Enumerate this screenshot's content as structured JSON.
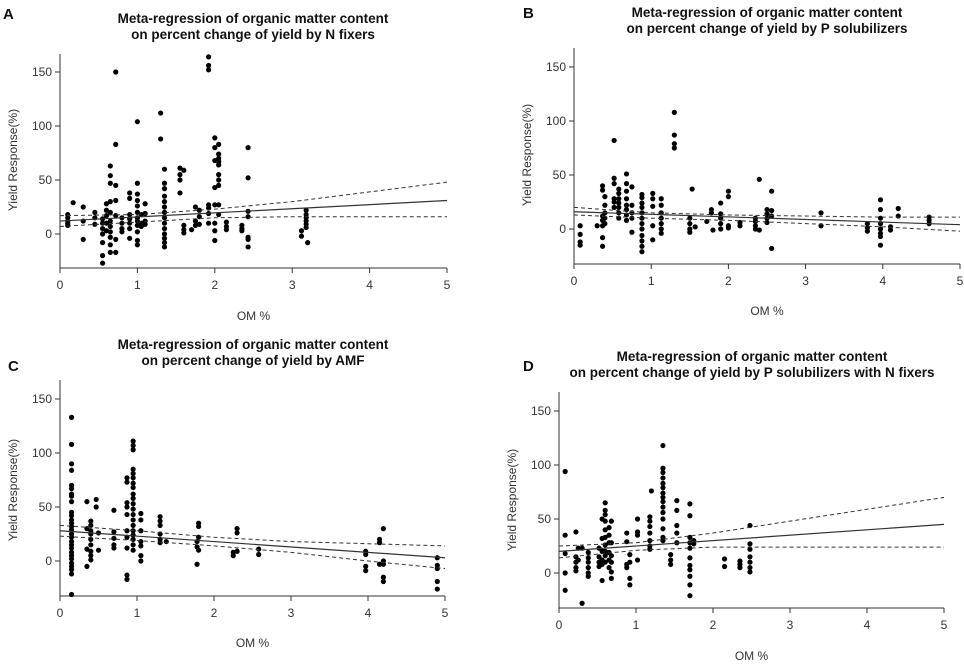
{
  "chart_data": [
    {
      "type": "scatter",
      "panel": "A",
      "title": [
        "Meta-regression of organic matter content",
        "on percent change of yield by N fixers"
      ],
      "xlabel": "OM %",
      "ylabel": "Yield Response(%)",
      "xlim": [
        0,
        5
      ],
      "ylim": [
        -31,
        168
      ],
      "xticks": [
        0,
        1,
        2,
        3,
        4,
        5
      ],
      "yticks": [
        0,
        50,
        100,
        150
      ],
      "fit": {
        "x": [
          0,
          5
        ],
        "y": [
          12,
          31
        ]
      },
      "ci_upper": {
        "x": [
          0,
          1,
          2,
          3,
          4,
          5
        ],
        "y": [
          17,
          18,
          23,
          30,
          39,
          48
        ]
      },
      "ci_lower": {
        "x": [
          0,
          1,
          2,
          3,
          4,
          5
        ],
        "y": [
          7,
          11,
          15,
          16,
          16,
          16
        ]
      },
      "points": {
        "0.1": [
          18,
          15,
          12,
          10,
          8
        ],
        "0.17": [
          29
        ],
        "0.3": [
          25,
          12,
          -5
        ],
        "0.45": [
          20,
          15,
          9
        ],
        "0.55": [
          14,
          10,
          5,
          0,
          -8,
          -20,
          -27
        ],
        "0.6": [
          28,
          22,
          17,
          10,
          3
        ],
        "0.65": [
          63,
          54,
          47,
          30,
          20,
          12,
          7,
          2,
          -3,
          -10,
          -17
        ],
        "0.72": [
          150,
          83,
          45,
          31,
          17,
          -5,
          -17
        ],
        "0.8": [
          15,
          10,
          5,
          2
        ],
        "0.9": [
          38,
          33,
          18,
          14,
          10,
          5,
          -4
        ],
        "1.0": [
          104,
          47,
          37,
          31,
          26,
          20,
          15,
          12,
          8,
          2,
          -6,
          -10
        ],
        "1.05": [
          18,
          10,
          7
        ],
        "1.1": [
          28,
          19,
          12,
          9
        ],
        "1.3": [
          112,
          88
        ],
        "1.35": [
          60,
          47,
          42,
          35,
          30,
          25,
          20,
          15,
          10,
          5,
          0,
          -4,
          -8,
          -12
        ],
        "1.55": [
          61,
          55,
          50,
          38
        ],
        "1.6": [
          59,
          8,
          4,
          1
        ],
        "1.7": [
          4
        ],
        "1.75": [
          25,
          12,
          8
        ],
        "1.8": [
          22,
          16,
          9
        ],
        "1.92": [
          164,
          156,
          152,
          27,
          24,
          19,
          10
        ],
        "2.0": [
          89,
          80,
          68,
          43,
          27,
          10,
          3,
          -6
        ],
        "2.05": [
          83,
          74,
          70,
          67,
          64,
          55,
          50,
          45,
          27,
          18
        ],
        "2.15": [
          11,
          7,
          4
        ],
        "2.35": [
          8,
          5,
          3
        ],
        "2.43": [
          80,
          52,
          21,
          16,
          -3,
          -5,
          -12
        ],
        "3.12": [
          3,
          -2
        ],
        "3.18": [
          22,
          18,
          15,
          12,
          9,
          6
        ],
        "3.2": [
          -8
        ]
      }
    },
    {
      "type": "scatter",
      "panel": "B",
      "title": [
        "Meta-regression of organic matter content",
        "on percent change of yield by P solubilizers"
      ],
      "xlabel": "OM %",
      "ylabel": "Yield Response(%)",
      "xlim": [
        0,
        5
      ],
      "ylim": [
        -31,
        168
      ],
      "xticks": [
        0,
        1,
        2,
        3,
        4,
        5
      ],
      "yticks": [
        0,
        50,
        100,
        150
      ],
      "fit": {
        "x": [
          0,
          5
        ],
        "y": [
          16,
          4
        ]
      },
      "ci_upper": {
        "x": [
          0,
          1,
          2,
          3,
          4,
          5
        ],
        "y": [
          20,
          15,
          13,
          12,
          11,
          11
        ]
      },
      "ci_lower": {
        "x": [
          0,
          1,
          2,
          3,
          4,
          5
        ],
        "y": [
          13,
          10,
          8,
          5,
          2,
          -2
        ]
      },
      "points": {
        "0.08": [
          3,
          -5,
          -12,
          -15
        ],
        "0.3": [
          3
        ],
        "0.37": [
          40,
          36,
          12,
          8,
          3,
          -8,
          -16
        ],
        "0.4": [
          30,
          22,
          15,
          10,
          5
        ],
        "0.52": [
          82,
          47,
          42,
          28,
          25,
          20
        ],
        "0.58": [
          37,
          33,
          28,
          24,
          20,
          15,
          10
        ],
        "0.68": [
          51,
          42,
          35,
          28,
          22,
          18,
          13,
          8
        ],
        "0.75": [
          39,
          22,
          15,
          10,
          -3
        ],
        "0.88": [
          32,
          29,
          24,
          20,
          15,
          10,
          5,
          0,
          -6,
          -11,
          -16,
          -21
        ],
        "1.02": [
          33,
          28,
          21,
          3,
          -10
        ],
        "1.13": [
          28,
          22,
          15,
          10,
          5,
          0,
          -4
        ],
        "1.3": [
          108,
          87,
          79,
          75
        ],
        "1.5": [
          10,
          5,
          0,
          -3
        ],
        "1.53": [
          37
        ],
        "1.57": [
          2
        ],
        "1.72": [
          7
        ],
        "1.78": [
          18,
          15
        ],
        "1.8": [
          -1
        ],
        "1.9": [
          24,
          14,
          10,
          5,
          0
        ],
        "2.0": [
          35,
          30,
          3,
          1
        ],
        "2.15": [
          6,
          3
        ],
        "2.35": [
          10,
          7,
          3,
          0
        ],
        "2.4": [
          46,
          -1
        ],
        "2.5": [
          18,
          14,
          10,
          6
        ],
        "2.56": [
          35,
          17,
          12,
          -18
        ],
        "3.2": [
          15,
          3
        ],
        "3.8": [
          5,
          1,
          -2
        ],
        "3.97": [
          27,
          18,
          10,
          5,
          0,
          -4,
          -7,
          -15
        ],
        "4.1": [
          2,
          -1
        ],
        "4.2": [
          19,
          12
        ],
        "4.6": [
          11,
          8,
          5
        ]
      }
    },
    {
      "type": "scatter",
      "panel": "C",
      "title": [
        "Meta-regression of organic matter content",
        "on percent change of yield by AMF"
      ],
      "xlabel": "OM %",
      "ylabel": "Yield Response(%)",
      "xlim": [
        0,
        5
      ],
      "ylim": [
        -31,
        168
      ],
      "xticks": [
        0,
        1,
        2,
        3,
        4,
        5
      ],
      "yticks": [
        0,
        50,
        100,
        150
      ],
      "fit": {
        "x": [
          0,
          5
        ],
        "y": [
          28,
          3
        ]
      },
      "ci_upper": {
        "x": [
          0,
          1,
          2,
          3,
          4,
          5
        ],
        "y": [
          33,
          28,
          22,
          18,
          16,
          14
        ]
      },
      "ci_lower": {
        "x": [
          0,
          1,
          2,
          3,
          4,
          5
        ],
        "y": [
          23,
          19,
          14,
          8,
          0,
          -7
        ]
      },
      "points": {
        "0.15": [
          133,
          108,
          90,
          84,
          70,
          67,
          62,
          60,
          55,
          45,
          42,
          38,
          35,
          32,
          29,
          25,
          22,
          18,
          15,
          12,
          8,
          5,
          2,
          -2,
          -5,
          -8,
          -12,
          -31
        ],
        "0.35": [
          55,
          30,
          11,
          -5
        ],
        "0.4": [
          37,
          33,
          28,
          25,
          20,
          15,
          9,
          5,
          1
        ],
        "0.47": [
          57,
          50
        ],
        "0.5": [
          26,
          10
        ],
        "0.7": [
          47,
          27,
          21,
          15,
          12
        ],
        "0.87": [
          77,
          73,
          54,
          50,
          43,
          28,
          22,
          12,
          -13,
          -17
        ],
        "0.95": [
          111,
          107,
          103,
          85,
          81,
          77,
          72,
          68,
          62,
          58,
          53,
          48,
          43,
          38,
          33,
          28,
          24,
          20,
          15,
          10
        ],
        "1.05": [
          44,
          38,
          28,
          18,
          14,
          5,
          0
        ],
        "1.3": [
          41,
          37,
          33,
          25,
          20,
          17
        ],
        "1.38": [
          18
        ],
        "1.78": [
          18,
          13,
          -3
        ],
        "1.8": [
          35,
          32,
          22,
          10
        ],
        "2.25": [
          8,
          5
        ],
        "2.3": [
          30,
          26,
          9
        ],
        "2.58": [
          11,
          6
        ],
        "3.97": [
          9,
          6,
          -5,
          -9
        ],
        "4.15": [
          20,
          17,
          -3
        ],
        "4.2": [
          30,
          0,
          -3,
          -15,
          -19
        ],
        "4.9": [
          3,
          -4,
          -7,
          -19,
          -26
        ]
      }
    },
    {
      "type": "scatter",
      "panel": "D",
      "title": [
        "Meta-regression of organic matter content",
        "on percent change of yield by P solubilizers with N fixers"
      ],
      "xlabel": "OM %",
      "ylabel": "Yield Response(%)",
      "xlim": [
        0,
        5
      ],
      "ylim": [
        -31,
        168
      ],
      "xticks": [
        0,
        1,
        2,
        3,
        4,
        5
      ],
      "yticks": [
        0,
        50,
        100,
        150
      ],
      "fit": {
        "x": [
          0,
          5
        ],
        "y": [
          20,
          45
        ]
      },
      "ci_upper": {
        "x": [
          0,
          1,
          2,
          3,
          4,
          5
        ],
        "y": [
          25,
          28,
          37,
          48,
          59,
          70
        ]
      },
      "ci_lower": {
        "x": [
          0,
          1,
          2,
          3,
          4,
          5
        ],
        "y": [
          14,
          21,
          24,
          24,
          24,
          24
        ]
      },
      "points": {
        "0.08": [
          94,
          35,
          18,
          0,
          -16
        ],
        "0.22": [
          38,
          15,
          10,
          5,
          2
        ],
        "0.25": [
          23,
          12
        ],
        "0.3": [
          23,
          -28
        ],
        "0.38": [
          19,
          14,
          10,
          5,
          0,
          -3
        ],
        "0.52": [
          23,
          15,
          10,
          6
        ],
        "0.56": [
          50,
          32,
          20,
          12,
          8,
          -7
        ],
        "0.6": [
          65,
          58,
          54,
          48,
          40,
          33,
          26,
          20,
          16,
          10
        ],
        "0.65": [
          42,
          35,
          28,
          19,
          12,
          5
        ],
        "0.68": [
          48,
          28,
          16,
          10,
          1,
          -5
        ],
        "0.88": [
          37,
          29,
          8,
          5
        ],
        "0.92": [
          17,
          10,
          -5,
          -11
        ],
        "1.02": [
          50,
          38,
          35,
          12
        ],
        "1.18": [
          52,
          48,
          43,
          37,
          30,
          25,
          22
        ],
        "1.2": [
          76
        ],
        "1.35": [
          118,
          97,
          93,
          88,
          83,
          79,
          74,
          70,
          66,
          61,
          56,
          50,
          41,
          33,
          30
        ],
        "1.45": [
          17,
          12,
          8
        ],
        "1.53": [
          67,
          58,
          44,
          37,
          28
        ],
        "1.7": [
          64,
          53,
          33,
          28,
          23,
          14,
          7,
          3,
          -3,
          -11,
          -21
        ],
        "1.75": [
          30,
          27
        ],
        "2.15": [
          13,
          6
        ],
        "2.35": [
          11,
          8,
          5
        ],
        "2.48": [
          44,
          27,
          22,
          15,
          10,
          5,
          1
        ]
      }
    }
  ]
}
